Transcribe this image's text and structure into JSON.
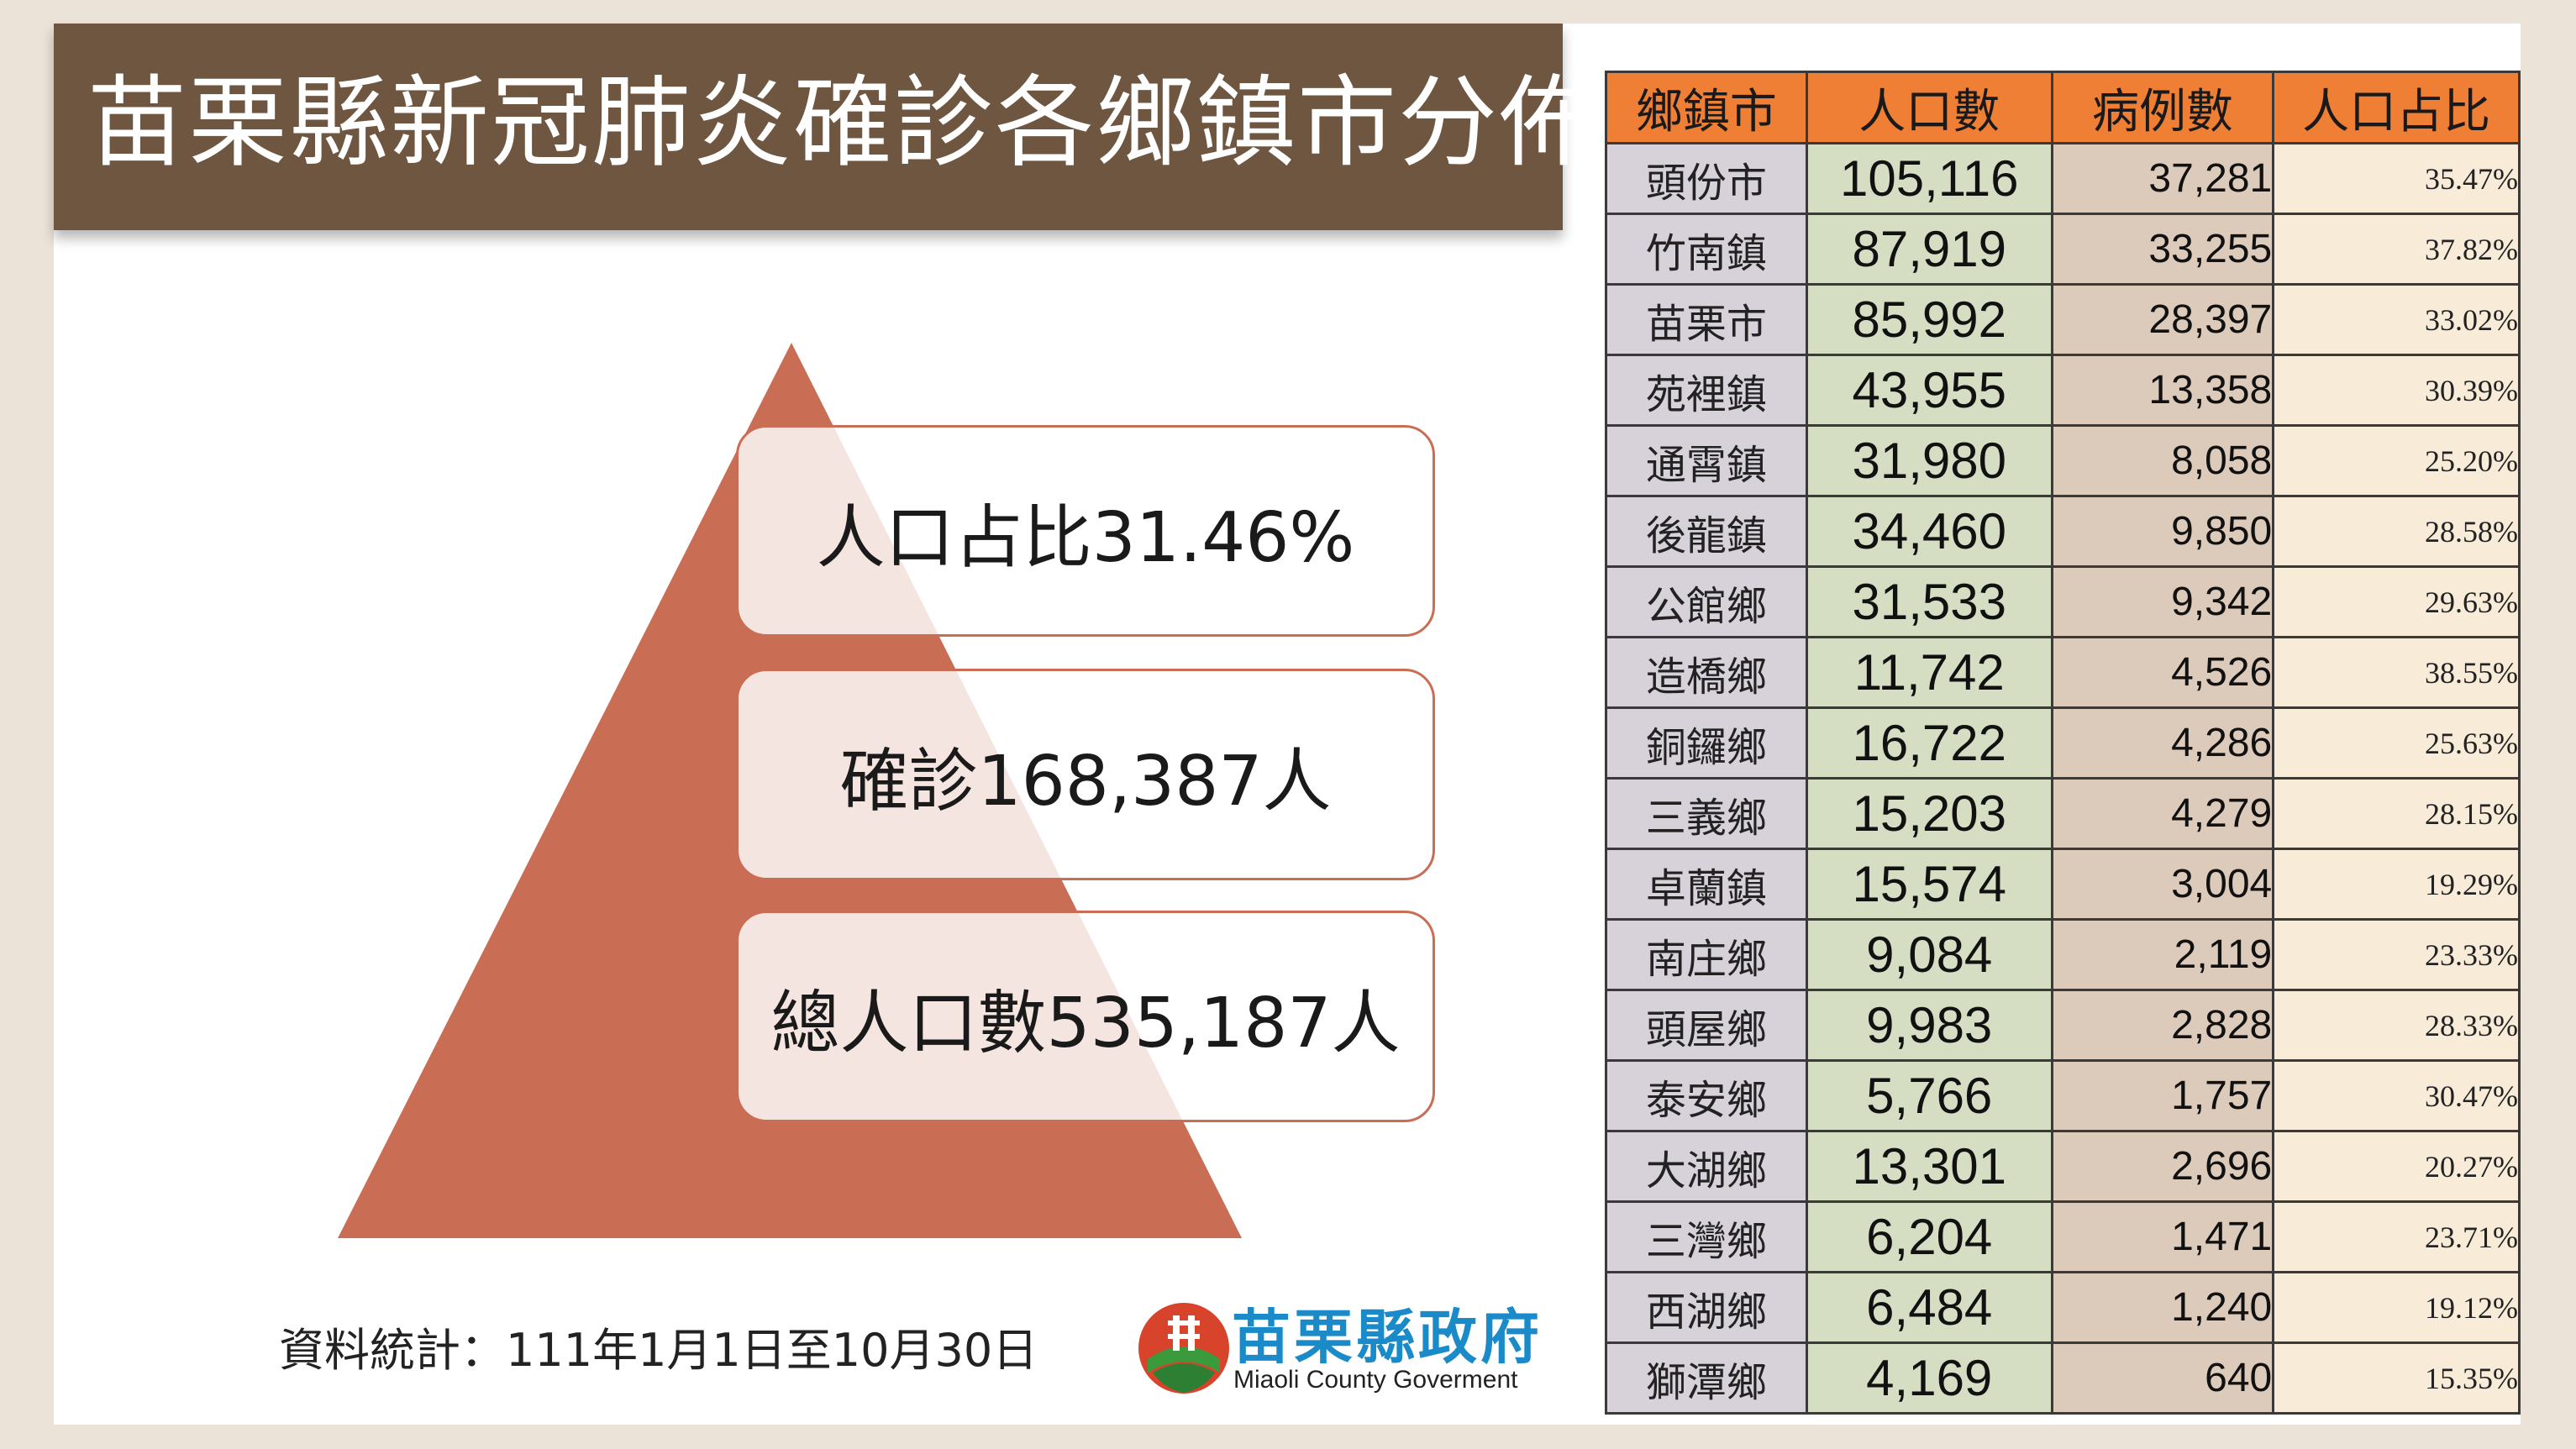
{
  "title": "苗栗縣新冠肺炎確診各鄉鎮市分佈",
  "stats": {
    "ratio": "人口占比31.46%",
    "cases": "確診168,387人",
    "population": "總人口數535,187人"
  },
  "source_note": "資料統計：111年1月1日至10月30日",
  "logo": {
    "cn": "苗栗縣政府",
    "en": "Miaoli County Goverment"
  },
  "colors": {
    "title_bg": "#6e5640",
    "pyramid": "#c96e55",
    "header": "#ee7f35",
    "logo_blue": "#1a8bc8"
  },
  "table": {
    "headers": [
      "鄉鎮市",
      "人口數",
      "病例數",
      "人口占比"
    ],
    "rows": [
      [
        "頭份市",
        "105,116",
        "37,281",
        "35.47%"
      ],
      [
        "竹南鎮",
        "87,919",
        "33,255",
        "37.82%"
      ],
      [
        "苗栗市",
        "85,992",
        "28,397",
        "33.02%"
      ],
      [
        "苑裡鎮",
        "43,955",
        "13,358",
        "30.39%"
      ],
      [
        "通霄鎮",
        "31,980",
        "8,058",
        "25.20%"
      ],
      [
        "後龍鎮",
        "34,460",
        "9,850",
        "28.58%"
      ],
      [
        "公館鄉",
        "31,533",
        "9,342",
        "29.63%"
      ],
      [
        "造橋鄉",
        "11,742",
        "4,526",
        "38.55%"
      ],
      [
        "銅鑼鄉",
        "16,722",
        "4,286",
        "25.63%"
      ],
      [
        "三義鄉",
        "15,203",
        "4,279",
        "28.15%"
      ],
      [
        "卓蘭鎮",
        "15,574",
        "3,004",
        "19.29%"
      ],
      [
        "南庄鄉",
        "9,084",
        "2,119",
        "23.33%"
      ],
      [
        "頭屋鄉",
        "9,983",
        "2,828",
        "28.33%"
      ],
      [
        "泰安鄉",
        "5,766",
        "1,757",
        "30.47%"
      ],
      [
        "大湖鄉",
        "13,301",
        "2,696",
        "20.27%"
      ],
      [
        "三灣鄉",
        "6,204",
        "1,471",
        "23.71%"
      ],
      [
        "西湖鄉",
        "6,484",
        "1,240",
        "19.12%"
      ],
      [
        "獅潭鄉",
        "4,169",
        "640",
        "15.35%"
      ]
    ]
  }
}
